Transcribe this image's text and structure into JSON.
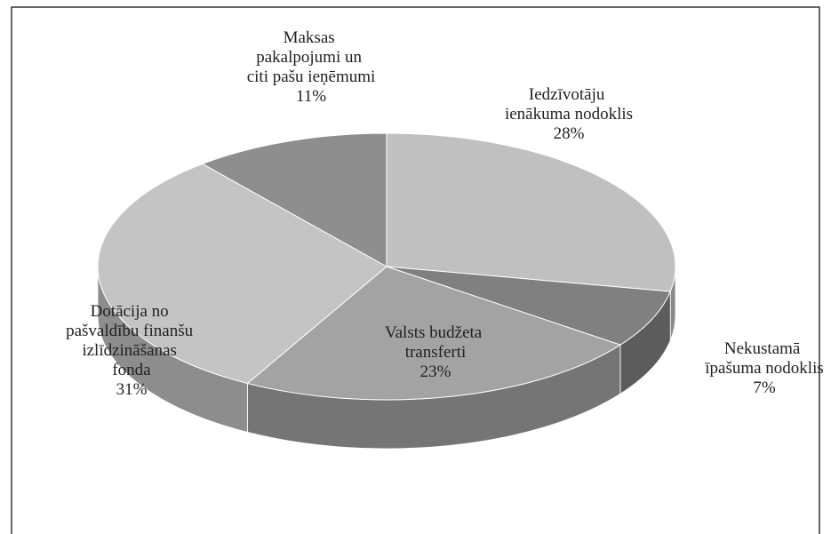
{
  "chart_data": {
    "type": "pie",
    "categories": [
      "Iedzīvotāju ienākuma nodoklis",
      "Nekustamā īpašuma nodoklis",
      "Valsts budžeta transferti",
      "Dotācija no pašvaldību finanšu izlīdzināšanas fonda",
      "Maksas pakalpojumi un citi pašu ieņēmumi"
    ],
    "values": [
      28,
      7,
      23,
      31,
      11
    ],
    "value_labels": [
      "28%",
      "7%",
      "23%",
      "31%",
      "11%"
    ],
    "colors": [
      "#c0c0c0",
      "#808080",
      "#a3a3a3",
      "#c4c4c4",
      "#8e8e8e"
    ],
    "three_d": true
  }
}
